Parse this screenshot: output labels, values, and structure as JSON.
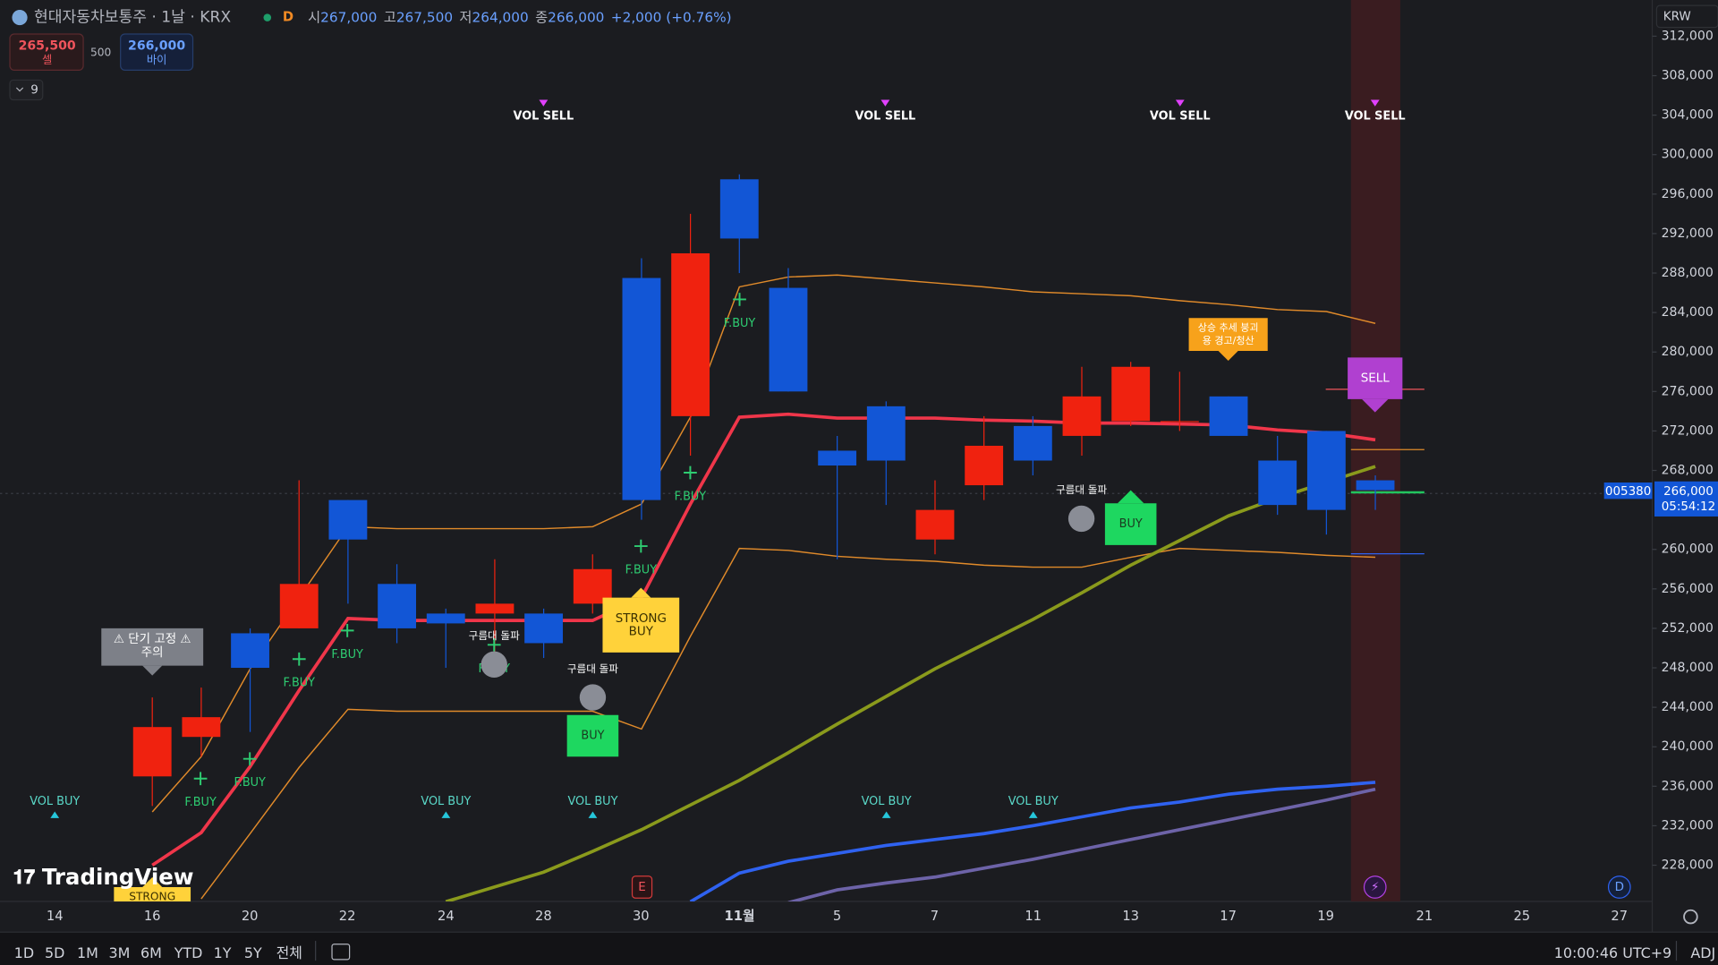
{
  "header": {
    "symbol": "현대자동차보통주 · 1날 · KRX",
    "flag": "D",
    "open_label": "시",
    "open": "267,000",
    "high_label": "고",
    "high": "267,500",
    "low_label": "저",
    "low": "264,000",
    "close_label": "종",
    "close": "266,000",
    "change": "+2,000 (+0.76%)"
  },
  "trade": {
    "sell_price": "265,500",
    "sell": "셀",
    "spread": "500",
    "buy_price": "266,000",
    "buy": "바이"
  },
  "indicator_count": "9",
  "price_axis": {
    "currency": "KRW",
    "ticks": [
      {
        "value": 312000,
        "label": "312,000"
      },
      {
        "value": 308000,
        "label": "308,000"
      },
      {
        "value": 304000,
        "label": "304,000"
      },
      {
        "value": 300000,
        "label": "300,000"
      },
      {
        "value": 296000,
        "label": "296,000"
      },
      {
        "value": 292000,
        "label": "292,000"
      },
      {
        "value": 288000,
        "label": "288,000"
      },
      {
        "value": 284000,
        "label": "284,000"
      },
      {
        "value": 280000,
        "label": "280,000"
      },
      {
        "value": 276000,
        "label": "276,000"
      },
      {
        "value": 272000,
        "label": "272,000"
      },
      {
        "value": 268000,
        "label": "268,000"
      },
      {
        "value": 260000,
        "label": "260,000"
      },
      {
        "value": 256000,
        "label": "256,000"
      },
      {
        "value": 252000,
        "label": "252,000"
      },
      {
        "value": 248000,
        "label": "248,000"
      },
      {
        "value": 244000,
        "label": "244,000"
      },
      {
        "value": 240000,
        "label": "240,000"
      },
      {
        "value": 236000,
        "label": "236,000"
      },
      {
        "value": 232000,
        "label": "232,000"
      },
      {
        "value": 228000,
        "label": "228,000"
      }
    ]
  },
  "last_price": {
    "code": "005380",
    "price": "266,000",
    "countdown": "05:54:12"
  },
  "time_axis": [
    "14",
    "16",
    "20",
    "22",
    "24",
    "28",
    "30",
    "11월",
    "5",
    "7",
    "11",
    "13",
    "17",
    "19",
    "21",
    "25",
    "27"
  ],
  "candles": {
    "open": [
      237000,
      241000,
      251500,
      252000,
      265000,
      256500,
      253500,
      253500,
      253500,
      254500,
      287500,
      273500,
      297500,
      286500,
      270000,
      274500,
      261000,
      266500,
      272500,
      271500,
      273000,
      273000,
      275500,
      269000,
      272000,
      267000
    ],
    "high": [
      245000,
      246000,
      252000,
      267000,
      265000,
      258500,
      254000,
      259000,
      254000,
      259500,
      289500,
      294000,
      298000,
      288500,
      271500,
      275000,
      267000,
      273500,
      273500,
      278500,
      279000,
      278000,
      275500,
      271500,
      272000,
      267500
    ],
    "low": [
      234000,
      239000,
      241500,
      252000,
      254500,
      250500,
      248000,
      248000,
      249000,
      253500,
      263000,
      269500,
      288000,
      276000,
      259000,
      264500,
      259500,
      265000,
      267500,
      269500,
      272500,
      272000,
      271500,
      263500,
      261500,
      264000
    ],
    "close": [
      242000,
      243000,
      248000,
      256500,
      261000,
      252000,
      252500,
      254500,
      250500,
      258000,
      265000,
      290000,
      291500,
      276000,
      268500,
      269000,
      264000,
      270500,
      269000,
      275500,
      278500,
      273000,
      271500,
      264500,
      264000,
      266000
    ]
  },
  "lines": [
    {
      "color": "#f0364a",
      "values": [
        228000,
        231300,
        238000,
        245700,
        253000,
        252800,
        252800,
        252800,
        252800,
        252800,
        255100,
        264600,
        273400,
        273700,
        273300,
        273300,
        273300,
        273100,
        273000,
        272800,
        272800,
        272700,
        272600,
        272100,
        271800,
        271100
      ]
    },
    {
      "color": "#e08a2a",
      "values": [
        233400,
        239000,
        247900,
        255100,
        262300,
        262100,
        262100,
        262100,
        262100,
        262300,
        264600,
        273400,
        286600,
        287600,
        287800,
        287400,
        287000,
        286600,
        286100,
        285900,
        285700,
        285200,
        284800,
        284300,
        284100,
        282900
      ]
    },
    {
      "color": "#e08a2a",
      "values": [
        null,
        224600,
        231200,
        237900,
        243800,
        243600,
        243600,
        243600,
        243600,
        243600,
        241800,
        251200,
        260100,
        259900,
        259300,
        259000,
        258800,
        258400,
        258200,
        258200,
        259200,
        260100,
        259900,
        259700,
        259400,
        259200
      ]
    },
    {
      "color": "#8a9a1c",
      "values": [
        null,
        null,
        null,
        null,
        null,
        null,
        224300,
        225800,
        227300,
        229400,
        231600,
        234100,
        236600,
        239400,
        242300,
        245100,
        247900,
        250400,
        252900,
        255600,
        258400,
        260900,
        263400,
        265200,
        266800,
        268400
      ]
    },
    {
      "color": "#2f62f0",
      "values": [
        null,
        null,
        null,
        null,
        null,
        null,
        null,
        null,
        null,
        null,
        null,
        224300,
        227200,
        228400,
        229200,
        230000,
        230600,
        231200,
        232000,
        232900,
        233800,
        234400,
        235200,
        235700,
        236000,
        236400
      ]
    },
    {
      "color": "#6d63a8",
      "values": [
        null,
        null,
        null,
        null,
        null,
        null,
        null,
        null,
        null,
        null,
        null,
        null,
        null,
        224200,
        225500,
        226200,
        226800,
        227700,
        228600,
        229600,
        230600,
        231600,
        232600,
        233600,
        234600,
        235700
      ]
    }
  ],
  "signals": [
    {
      "text": "VOL SELL"
    },
    {
      "text": "VOL SELL"
    },
    {
      "text": "VOL SELL"
    },
    {
      "text": "VOL SELL"
    },
    {
      "text": "VOL BUY"
    },
    {
      "text": "VOL BUY"
    },
    {
      "text": "VOL BUY"
    },
    {
      "text": "VOL BUY"
    },
    {
      "text": "VOL BUY"
    },
    {
      "text": "F.BUY"
    },
    {
      "text": "F.BUY"
    },
    {
      "text": "F.BUY"
    },
    {
      "text": "F.BUY"
    },
    {
      "text": "F.BUY"
    },
    {
      "text": "F.BUY"
    },
    {
      "text": "F.BUY"
    },
    {
      "text": "F.BUY"
    },
    {
      "text": "구름대 돌파"
    },
    {
      "text": "구름대 돌파"
    },
    {
      "text": "구름대 돌파"
    },
    {
      "text": "BUY"
    },
    {
      "text": "BUY"
    },
    {
      "lines": [
        "STRONG",
        "BUY"
      ]
    },
    {
      "text": "STRONG"
    },
    {
      "lines": [
        "⚠ 단기 고정 ⚠",
        "주의"
      ]
    },
    {
      "lines": [
        "상승 추세 붕괴",
        "용 경고/청산"
      ]
    },
    {
      "text": "SELL"
    }
  ],
  "markers": [
    "E",
    "D"
  ],
  "logo": "TradingView",
  "bottom_bar": {
    "ranges": [
      "1D",
      "5D",
      "1M",
      "3M",
      "6M",
      "YTD",
      "1Y",
      "5Y",
      "전체"
    ],
    "clock": "10:00:46 UTC+9",
    "adj": "ADJ"
  }
}
